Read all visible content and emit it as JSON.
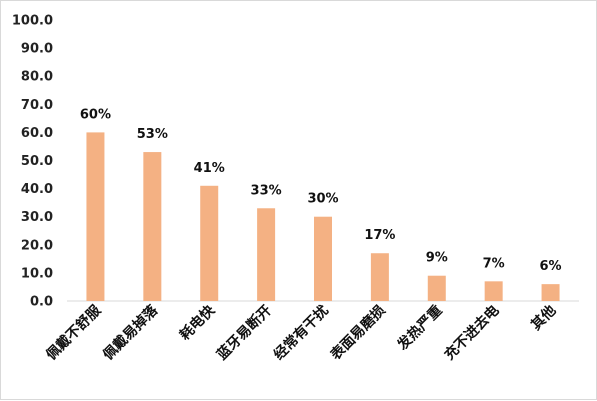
{
  "chart_data": {
    "type": "bar",
    "title": "",
    "xlabel": "",
    "ylabel": "",
    "categories": [
      "佩戴不舒服",
      "佩戴易掉落",
      "耗电快",
      "蓝牙易断开",
      "经常有干扰",
      "表面易磨损",
      "发热严重",
      "充不进去电",
      "其他"
    ],
    "values": [
      60,
      53,
      41,
      33,
      30,
      17,
      9,
      7,
      6
    ],
    "data_labels": [
      "60%",
      "53%",
      "41%",
      "33%",
      "30%",
      "17%",
      "9%",
      "7%",
      "6%"
    ],
    "ylim": [
      0,
      100
    ],
    "yticks": [
      "0.0",
      "10.0",
      "20.0",
      "30.0",
      "40.0",
      "50.0",
      "60.0",
      "70.0",
      "80.0",
      "90.0",
      "100.0"
    ],
    "bar_color": "#f4b183",
    "axis_color": "#d9d9d9",
    "grid": false,
    "legend": "none"
  }
}
